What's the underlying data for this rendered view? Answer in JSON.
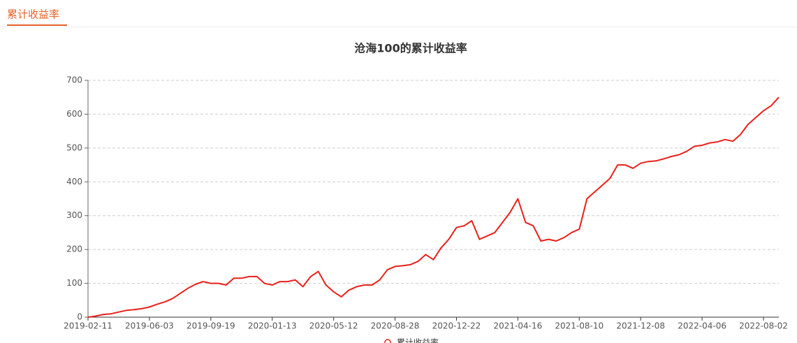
{
  "tab": "累计收益率",
  "chart_data": {
    "type": "line",
    "title": "沧海100的累计收益率",
    "categories": [
      "2019-02-11",
      null,
      null,
      null,
      null,
      null,
      null,
      null,
      "2019-06-03",
      null,
      null,
      null,
      null,
      null,
      null,
      null,
      "2019-09-19",
      null,
      null,
      null,
      null,
      null,
      null,
      null,
      "2020-01-13",
      null,
      null,
      null,
      null,
      null,
      null,
      null,
      "2020-05-12",
      null,
      null,
      null,
      null,
      null,
      null,
      null,
      "2020-08-28",
      null,
      null,
      null,
      null,
      null,
      null,
      null,
      "2020-12-22",
      null,
      null,
      null,
      null,
      null,
      null,
      null,
      "2021-04-16",
      null,
      null,
      null,
      null,
      null,
      null,
      null,
      "2021-08-10",
      null,
      null,
      null,
      null,
      null,
      null,
      null,
      "2021-12-08",
      null,
      null,
      null,
      null,
      null,
      null,
      null,
      "2022-04-06",
      null,
      null,
      null,
      null,
      null,
      null,
      null,
      "2022-08-02",
      null,
      null
    ],
    "series": [
      {
        "name": "累计收益率",
        "color": "#e8211a",
        "values": [
          0,
          3,
          8,
          10,
          15,
          20,
          22,
          25,
          30,
          38,
          45,
          55,
          70,
          85,
          97,
          105,
          100,
          100,
          95,
          115,
          115,
          120,
          120,
          100,
          95,
          105,
          105,
          110,
          90,
          120,
          135,
          95,
          75,
          60,
          80,
          90,
          95,
          95,
          110,
          140,
          150,
          152,
          155,
          165,
          185,
          170,
          205,
          230,
          265,
          270,
          285,
          230,
          240,
          250,
          280,
          310,
          350,
          280,
          270,
          225,
          230,
          225,
          235,
          250,
          260,
          350,
          370,
          390,
          410,
          450,
          450,
          440,
          455,
          460,
          462,
          468,
          475,
          480,
          490,
          505,
          508,
          515,
          518,
          525,
          520,
          540,
          570,
          590,
          610,
          625,
          650
        ]
      }
    ],
    "ylim": [
      0,
      700
    ],
    "yticks": [
      0,
      100,
      200,
      300,
      400,
      500,
      600,
      700
    ],
    "grid": true
  }
}
